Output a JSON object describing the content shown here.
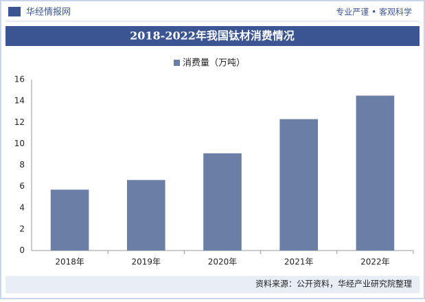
{
  "chart_data": {
    "type": "bar",
    "brand": "华经情报网",
    "tagline": "专业严谨 • 客观科学",
    "title": "2018-2022年我国钛材消费情况",
    "categories": [
      "2018年",
      "2019年",
      "2020年",
      "2021年",
      "2022年"
    ],
    "series": [
      {
        "name": "消费量（万吨）",
        "color": "#6b7ea6",
        "values": [
          5.7,
          6.6,
          9.1,
          12.3,
          14.5
        ]
      }
    ],
    "ylim": [
      0,
      16
    ],
    "yticks": [
      0,
      2,
      4,
      6,
      8,
      10,
      12,
      14,
      16
    ],
    "grid": false,
    "source": "资料来源：公开资料，华经产业研究院整理"
  }
}
